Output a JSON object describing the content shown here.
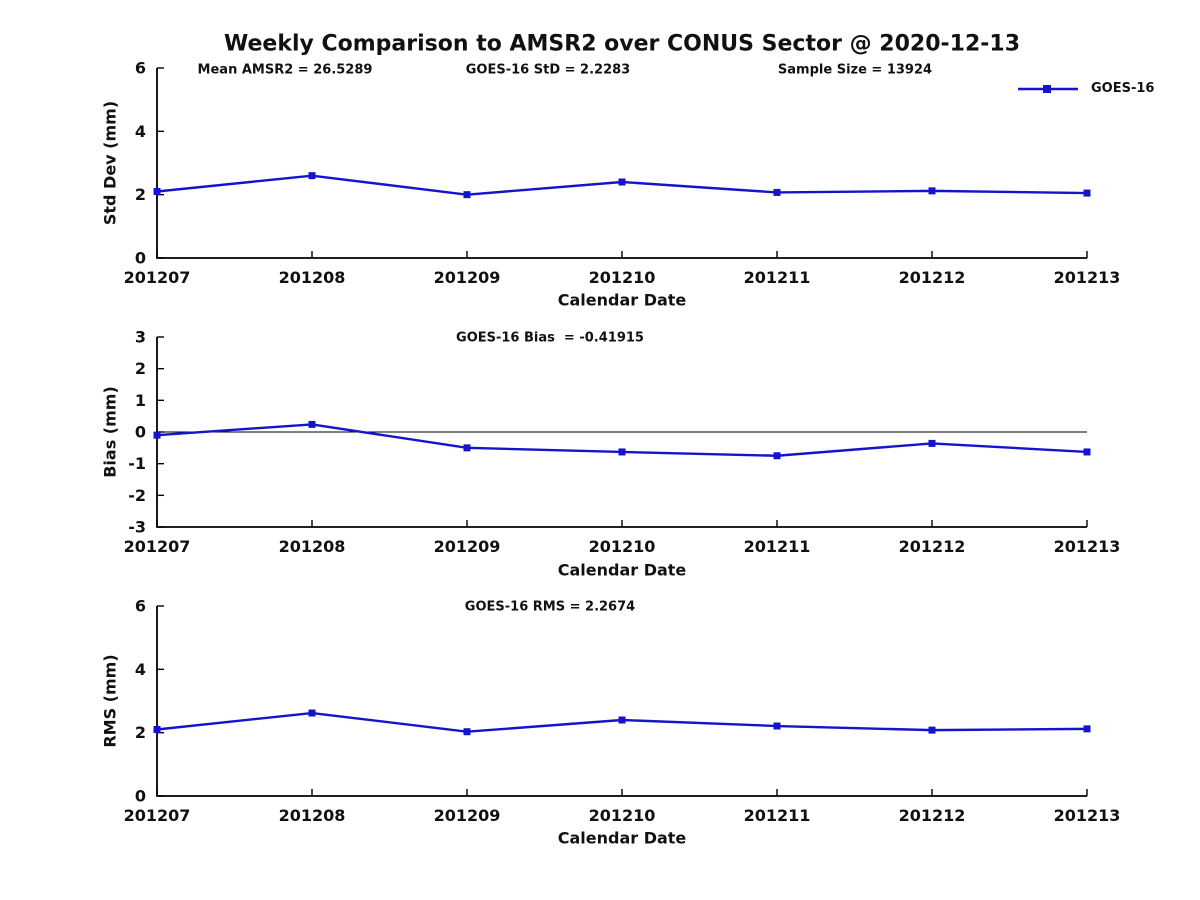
{
  "title": "Weekly Comparison to AMSR2 over CONUS Sector @ 2020-12-13",
  "header_stats": {
    "mean_amsr2": "Mean AMSR2 = 26.5289",
    "goes16_std": "GOES-16 StD = 2.2283",
    "sample_size": "Sample Size = 13924"
  },
  "legend": {
    "series": "GOES-16",
    "position": "top-right"
  },
  "colors": {
    "line": "#1414cc",
    "axis": "#000000",
    "text": "#111111",
    "background": "#ffffff"
  },
  "chart_data": [
    {
      "type": "line",
      "ylabel": "Std Dev (mm)",
      "xlabel": "Calendar Date",
      "categories": [
        "201207",
        "201208",
        "201209",
        "201210",
        "201211",
        "201212",
        "201213"
      ],
      "series": [
        {
          "name": "GOES-16",
          "values": [
            2.1,
            2.6,
            2.0,
            2.4,
            2.07,
            2.12,
            2.05
          ]
        }
      ],
      "ylim": [
        0,
        6
      ],
      "yticks": [
        0,
        2,
        4,
        6
      ],
      "zero_line": false,
      "annotation": "",
      "grid": false,
      "marker": "square"
    },
    {
      "type": "line",
      "ylabel": "Bias (mm)",
      "xlabel": "Calendar Date",
      "categories": [
        "201207",
        "201208",
        "201209",
        "201210",
        "201211",
        "201212",
        "201213"
      ],
      "series": [
        {
          "name": "GOES-16",
          "values": [
            -0.1,
            0.24,
            -0.5,
            -0.63,
            -0.75,
            -0.36,
            -0.63
          ]
        }
      ],
      "ylim": [
        -3,
        3
      ],
      "yticks": [
        -3,
        -2,
        -1,
        0,
        1,
        2,
        3
      ],
      "zero_line": true,
      "annotation": "GOES-16 Bias  = -0.41915",
      "grid": false,
      "marker": "square"
    },
    {
      "type": "line",
      "ylabel": "RMS (mm)",
      "xlabel": "Calendar Date",
      "categories": [
        "201207",
        "201208",
        "201209",
        "201210",
        "201211",
        "201212",
        "201213"
      ],
      "series": [
        {
          "name": "GOES-16",
          "values": [
            2.1,
            2.62,
            2.03,
            2.4,
            2.21,
            2.08,
            2.12
          ]
        }
      ],
      "ylim": [
        0,
        6
      ],
      "yticks": [
        0,
        2,
        4,
        6
      ],
      "zero_line": false,
      "annotation": "GOES-16 RMS = 2.2674",
      "grid": false,
      "marker": "square"
    }
  ]
}
